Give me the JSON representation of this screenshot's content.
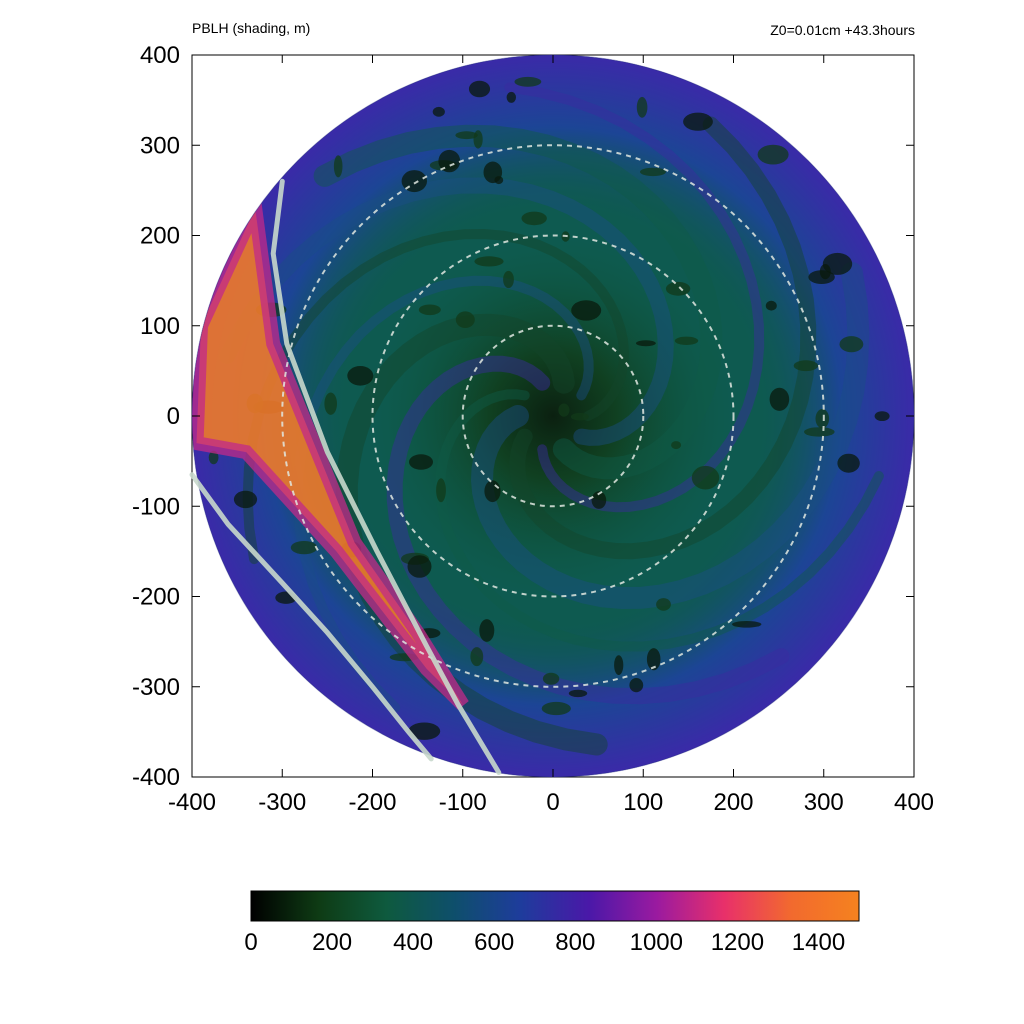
{
  "chart_data": {
    "type": "heatmap",
    "title": "PBLH (shading, m)",
    "subtitle": "Z0=0.01cm  +43.3hours",
    "xlim": [
      -400,
      400
    ],
    "ylim": [
      -400,
      400
    ],
    "xticks": [
      "-400",
      "-300",
      "-200",
      "-100",
      "0",
      "100",
      "200",
      "300",
      "400"
    ],
    "yticks": [
      "400",
      "300",
      "200",
      "100",
      "0",
      "-100",
      "-200",
      "-300",
      "-400"
    ],
    "domain_radius": 400,
    "range_rings": [
      100,
      200,
      300
    ],
    "colorbar": {
      "min": 0,
      "max": 1500,
      "ticks": [
        "0",
        "200",
        "400",
        "600",
        "800",
        "1000",
        "1200",
        "1400"
      ],
      "colors": [
        "#000000",
        "#0e3b14",
        "#0e5a3e",
        "#0e4f6b",
        "#1e3c9c",
        "#4a18a8",
        "#9a1aa0",
        "#e8306a",
        "#f26a2e",
        "#f5821f"
      ]
    },
    "lines": [
      {
        "points": [
          [
            -300,
            260
          ],
          [
            -310,
            180
          ],
          [
            -295,
            80
          ],
          [
            -250,
            -40
          ],
          [
            -195,
            -150
          ],
          [
            -140,
            -255
          ],
          [
            -105,
            -320
          ],
          [
            -60,
            -395
          ]
        ]
      },
      {
        "points": [
          [
            -400,
            -65
          ],
          [
            -360,
            -120
          ],
          [
            -300,
            -185
          ],
          [
            -250,
            -240
          ],
          [
            -200,
            -300
          ],
          [
            -160,
            -350
          ],
          [
            -135,
            -380
          ]
        ]
      }
    ],
    "highlights": [
      {
        "label": "orange band",
        "points": [
          [
            -390,
            100
          ],
          [
            -330,
            230
          ],
          [
            -310,
            80
          ],
          [
            -220,
            -140
          ],
          [
            -150,
            -240
          ],
          [
            -100,
            -320
          ],
          [
            -140,
            -280
          ],
          [
            -240,
            -150
          ],
          [
            -340,
            -40
          ],
          [
            -395,
            -30
          ]
        ]
      }
    ]
  }
}
